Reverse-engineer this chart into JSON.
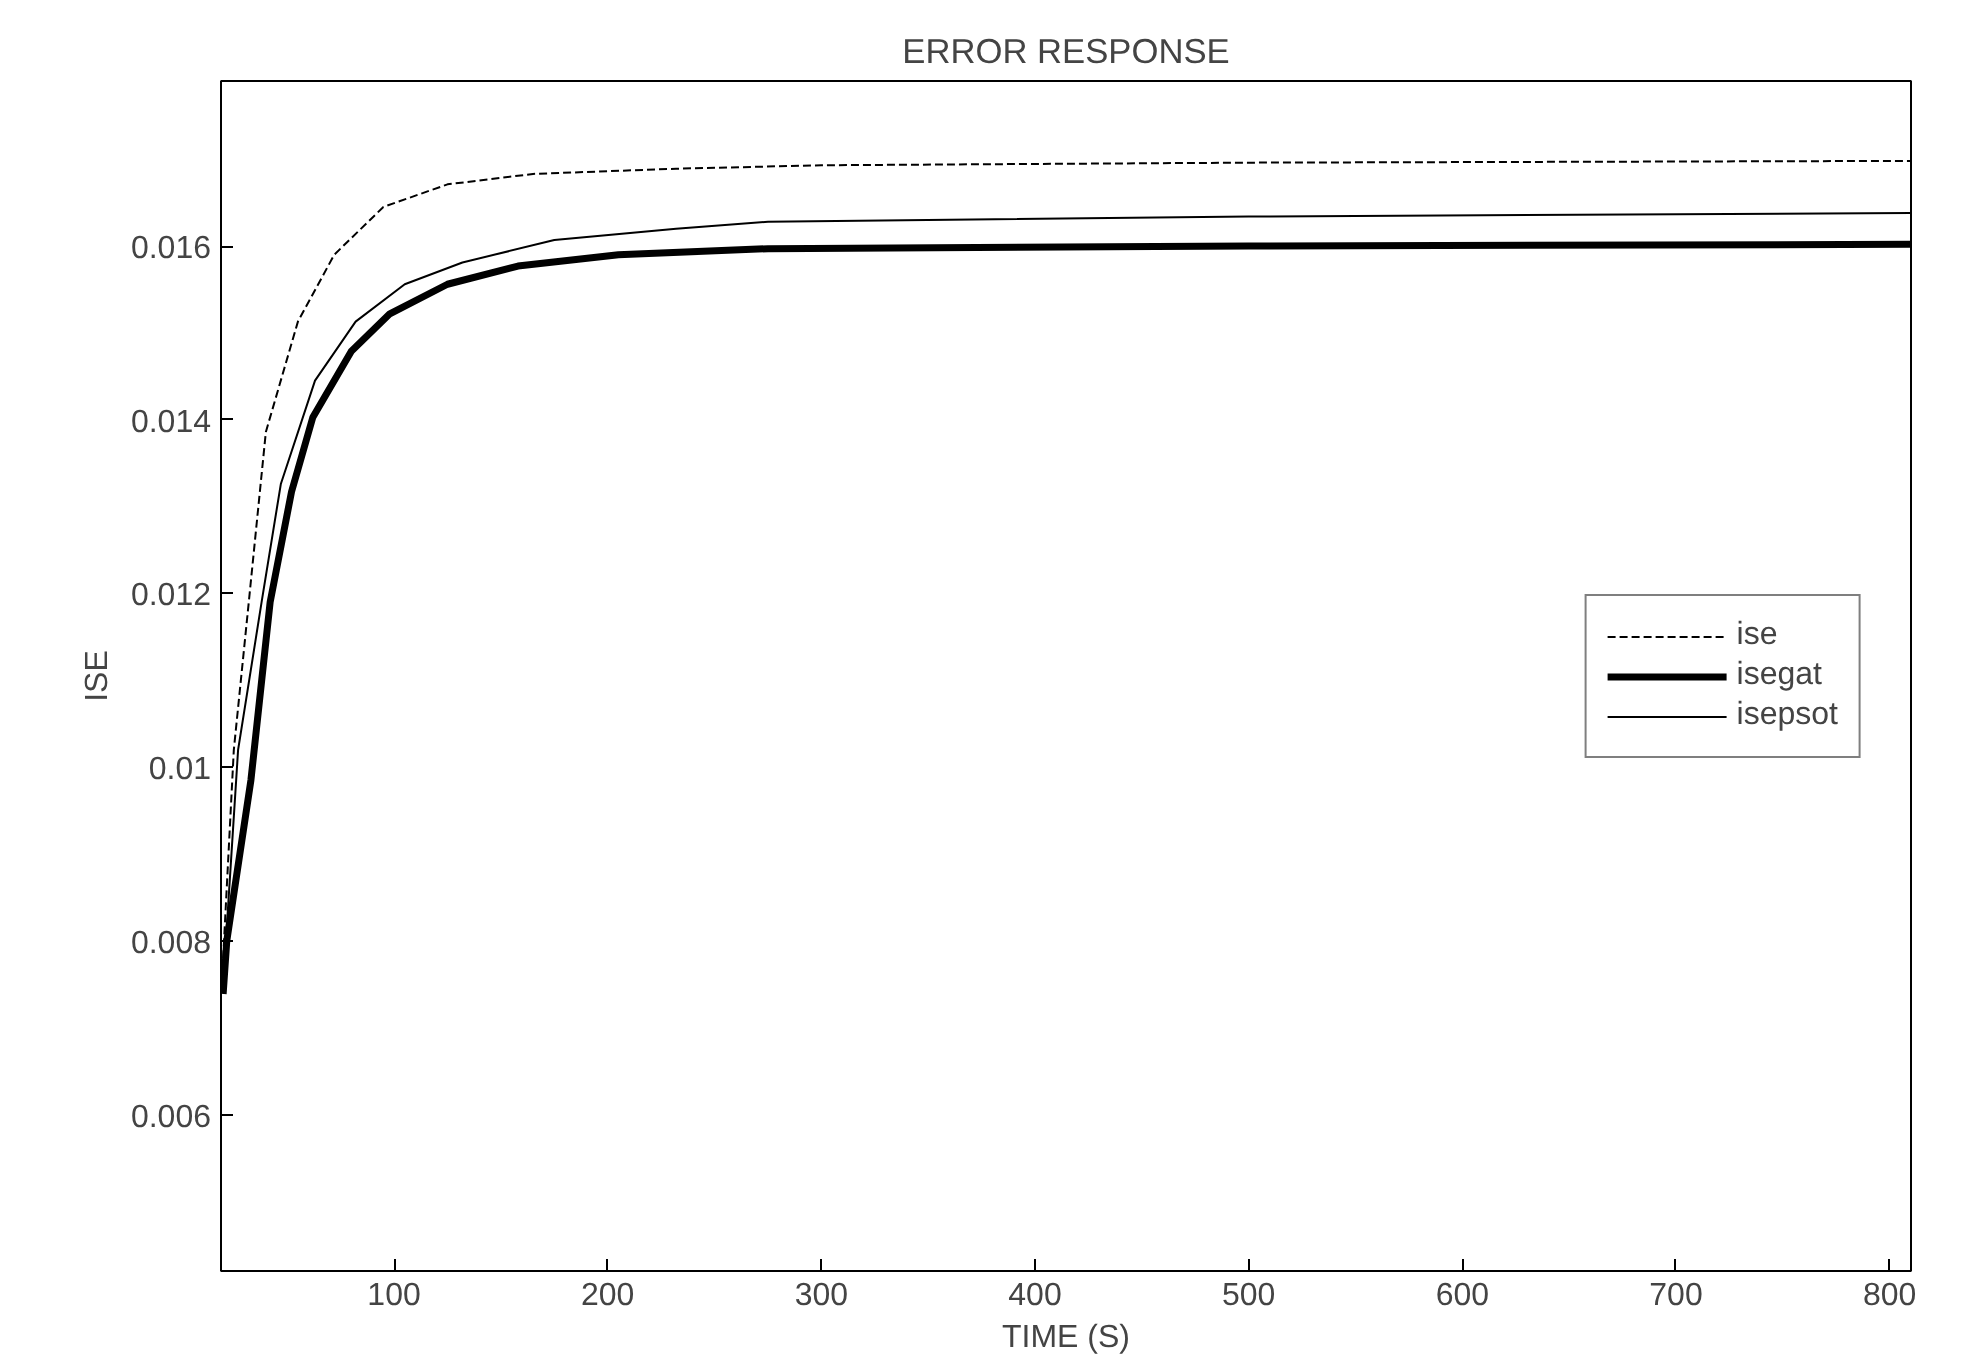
{
  "chart_data": {
    "type": "line",
    "title": "ERROR RESPONSE",
    "xlabel": "TIME (S)",
    "ylabel": "ISE",
    "xlim": [
      19,
      810
    ],
    "ylim": [
      0.0042,
      0.0179
    ],
    "xticks": [
      100,
      200,
      300,
      400,
      500,
      600,
      700,
      800
    ],
    "yticks": [
      0.006,
      0.008,
      {
        "value": 0.01,
        "label": "0.01"
      },
      0.012,
      0.014,
      0.016
    ],
    "grid": false,
    "legend": "right",
    "series": [
      {
        "name": "ise",
        "color": "#000000",
        "line_style": "dashed",
        "x": [
          20,
          25,
          32,
          40,
          55,
          72,
          95,
          125,
          165,
          232,
          300,
          500,
          810
        ],
        "values": [
          0.0078,
          0.0102,
          0.0119,
          0.01386,
          0.01513,
          0.0159,
          0.01645,
          0.01671,
          0.01683,
          0.01689,
          0.01693,
          0.01696,
          0.01698
        ]
      },
      {
        "name": "isegat",
        "color": "#000000",
        "line_style": "solid",
        "x": [
          20,
          21.7,
          33,
          42,
          52,
          62,
          80,
          98,
          125,
          158,
          205,
          275,
          500,
          810
        ],
        "values": [
          0.00739,
          0.008,
          0.00985,
          0.0119,
          0.01317,
          0.01403,
          0.01479,
          0.01522,
          0.01556,
          0.01577,
          0.0159,
          0.01597,
          0.016,
          0.01602
        ]
      },
      {
        "name": "isepsot",
        "color": "#000000",
        "line_style": "solid",
        "x": [
          20,
          27,
          38,
          47,
          63,
          82,
          105,
          132,
          175,
          232,
          275,
          500,
          810
        ],
        "values": [
          0.0075,
          0.0102,
          0.0119,
          0.01326,
          0.01445,
          0.01513,
          0.01556,
          0.01581,
          0.01607,
          0.0162,
          0.01628,
          0.01634,
          0.01638
        ]
      }
    ]
  }
}
